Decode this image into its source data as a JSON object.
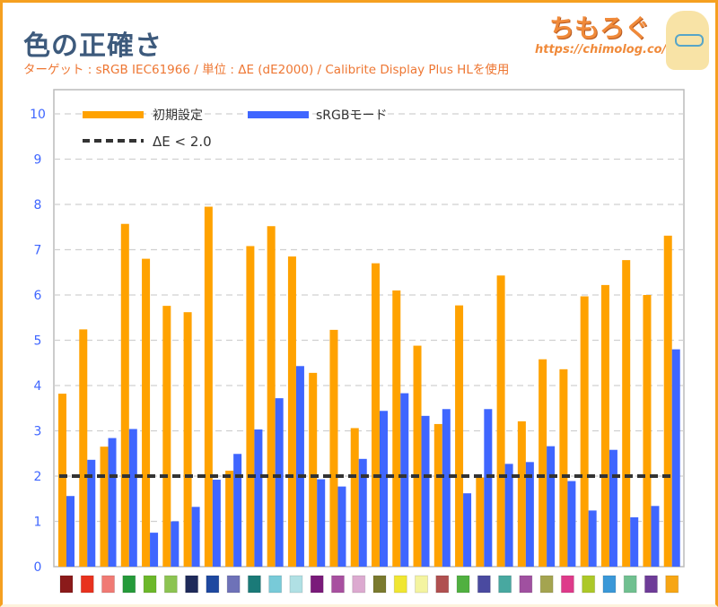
{
  "header": {
    "title": "色の正確さ",
    "subtitle": "ターゲット : sRGB IEC61966 / 単位 : ΔE (dE2000) / Calibrite Display Plus HLを使用",
    "logo_text": "ちもろぐ",
    "logo_url": "https://chimolog.co/"
  },
  "chart_data": {
    "type": "bar",
    "title": "色の正確さ",
    "xlabel": "",
    "ylabel": "ΔE",
    "ylim": [
      0,
      10
    ],
    "yticks": [
      "0",
      "1",
      "2",
      "3",
      "4",
      "5",
      "6",
      "7",
      "8",
      "9",
      "10"
    ],
    "grid": true,
    "legend_position": "top-left",
    "categories": [
      "#8b1a1a",
      "#e8321e",
      "#f07a74",
      "#259a3a",
      "#6cb82a",
      "#8cc452",
      "#1e2a5a",
      "#1e48a0",
      "#6e72b8",
      "#1a7a78",
      "#78cad8",
      "#b0e0e4",
      "#7a1a7a",
      "#a850a0",
      "#dcaad0",
      "#7a7a2e",
      "#f0e632",
      "#f4f4a0",
      "#b05050",
      "#50b040",
      "#4a4aa0",
      "#48a8a0",
      "#a050a0",
      "#a4a450",
      "#de3a8a",
      "#acc828",
      "#3a98d8",
      "#70c090",
      "#6e3c98",
      "#f7a614"
    ],
    "series": [
      {
        "name": "初期設定",
        "color": "#ffa200",
        "values": [
          3.82,
          5.24,
          2.65,
          7.57,
          6.8,
          5.76,
          5.62,
          7.95,
          2.12,
          7.08,
          7.52,
          6.85,
          4.28,
          5.23,
          3.06,
          6.7,
          6.1,
          4.88,
          3.15,
          5.77,
          1.97,
          6.43,
          3.21,
          4.58,
          4.36,
          5.97,
          6.22,
          6.77,
          6.0,
          7.31
        ]
      },
      {
        "name": "sRGBモード",
        "color": "#3f66ff",
        "values": [
          1.56,
          2.36,
          2.84,
          3.04,
          0.75,
          1.0,
          1.32,
          1.92,
          2.49,
          3.03,
          3.72,
          4.43,
          1.93,
          1.77,
          2.38,
          3.44,
          3.83,
          3.33,
          3.48,
          1.62,
          3.48,
          2.27,
          2.31,
          2.66,
          1.89,
          1.24,
          2.58,
          1.09,
          1.34,
          4.8
        ]
      }
    ],
    "reference_line": {
      "name": "ΔE < 2.0",
      "value": 2.0,
      "color": "#333333"
    }
  }
}
